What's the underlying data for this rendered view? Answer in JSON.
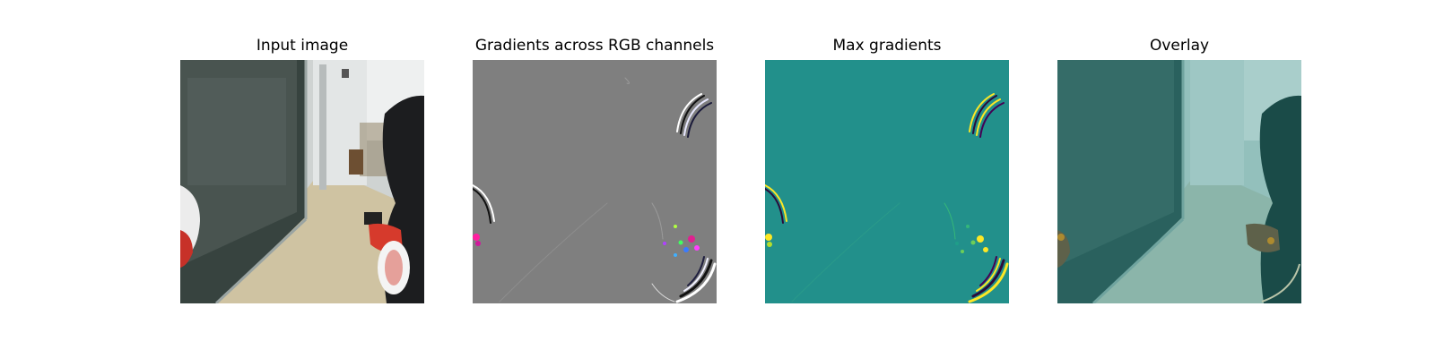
{
  "figure": {
    "panels": [
      {
        "title": "Input image"
      },
      {
        "title": "Gradients across RGB channels"
      },
      {
        "title": "Max gradients"
      },
      {
        "title": "Overlay"
      }
    ]
  }
}
